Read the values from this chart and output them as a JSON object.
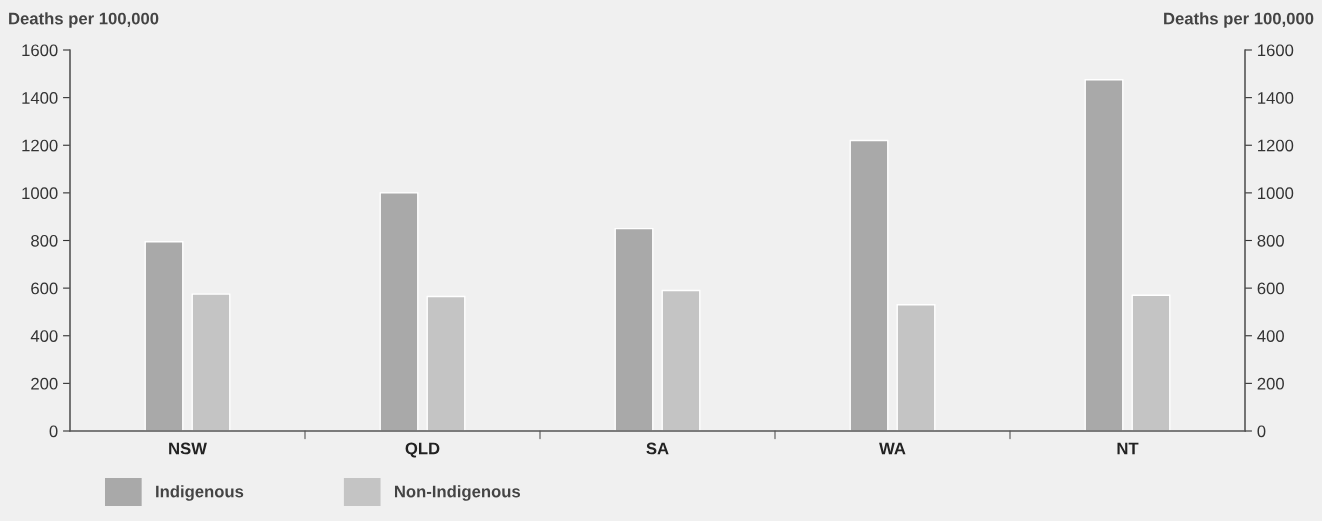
{
  "chart_data": {
    "type": "bar",
    "ylabel": "Deaths per 100,000",
    "y2label": "Deaths per 100,000",
    "categories": [
      "NSW",
      "QLD",
      "SA",
      "WA",
      "NT"
    ],
    "series": [
      {
        "name": "Indigenous",
        "color": "#a9a9a9",
        "values": [
          795,
          1000,
          850,
          1220,
          1475
        ]
      },
      {
        "name": "Non-Indigenous",
        "color": "#c4c4c4",
        "values": [
          575,
          565,
          590,
          530,
          570
        ]
      }
    ],
    "ylim": [
      0,
      1600
    ],
    "yticks": [
      0,
      200,
      400,
      600,
      800,
      1000,
      1200,
      1400,
      1600
    ],
    "y2lim": [
      0,
      1600
    ],
    "y2ticks": [
      0,
      200,
      400,
      600,
      800,
      1000,
      1200,
      1400,
      1600
    ],
    "grid": false,
    "legend": "bottom left"
  }
}
